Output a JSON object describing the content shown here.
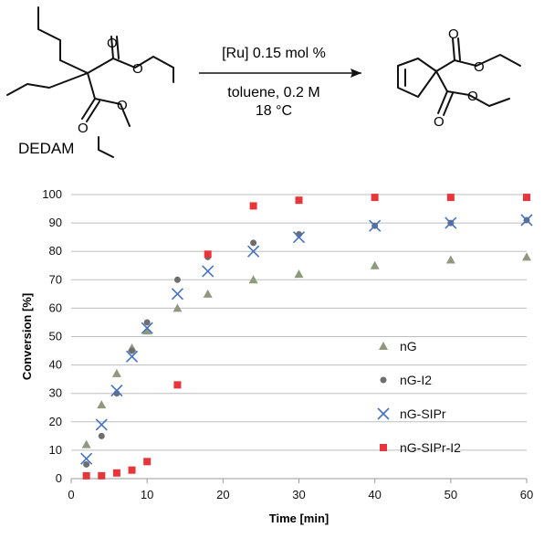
{
  "scheme": {
    "reactant_label": "DEDAM",
    "conditions_above": "[Ru] 0.15 mol %",
    "conditions_below_1": "toluene, 0.2 M",
    "conditions_below_2": "18 °C"
  },
  "chart_data": {
    "type": "scatter",
    "xlabel": "Time [min]",
    "ylabel": "Conversion [%]",
    "xlim": [
      0,
      60
    ],
    "ylim": [
      0,
      100
    ],
    "xticks": [
      0,
      10,
      20,
      30,
      40,
      50,
      60
    ],
    "yticks": [
      0,
      10,
      20,
      30,
      40,
      50,
      60,
      70,
      80,
      90,
      100
    ],
    "grid": "horizontal",
    "legend_position": "lower-right",
    "series": [
      {
        "name": "nG",
        "marker": "triangle",
        "color": "#8f9a7c",
        "x": [
          2,
          4,
          6,
          8,
          10,
          14,
          18,
          24,
          30,
          40,
          50,
          60
        ],
        "y": [
          12,
          26,
          37,
          46,
          52,
          60,
          65,
          70,
          72,
          75,
          77,
          78
        ]
      },
      {
        "name": "nG-I2",
        "marker": "circle",
        "color": "#6e6e6e",
        "x": [
          2,
          4,
          6,
          8,
          10,
          14,
          18,
          24,
          30,
          40,
          50,
          60
        ],
        "y": [
          5,
          15,
          30,
          45,
          55,
          70,
          78,
          83,
          86,
          89,
          90,
          91
        ]
      },
      {
        "name": "nG-SIPr",
        "marker": "x",
        "color": "#4472c4",
        "x": [
          2,
          4,
          6,
          8,
          10,
          14,
          18,
          24,
          30,
          40,
          50,
          60
        ],
        "y": [
          7,
          19,
          31,
          43,
          53,
          65,
          73,
          80,
          85,
          89,
          90,
          91
        ]
      },
      {
        "name": "nG-SIPr-I2",
        "marker": "square",
        "color": "#e8353a",
        "x": [
          2,
          4,
          6,
          8,
          10,
          14,
          18,
          24,
          30,
          40,
          50,
          60
        ],
        "y": [
          1,
          1,
          2,
          3,
          6,
          33,
          79,
          96,
          98,
          99,
          99,
          99
        ]
      }
    ]
  }
}
